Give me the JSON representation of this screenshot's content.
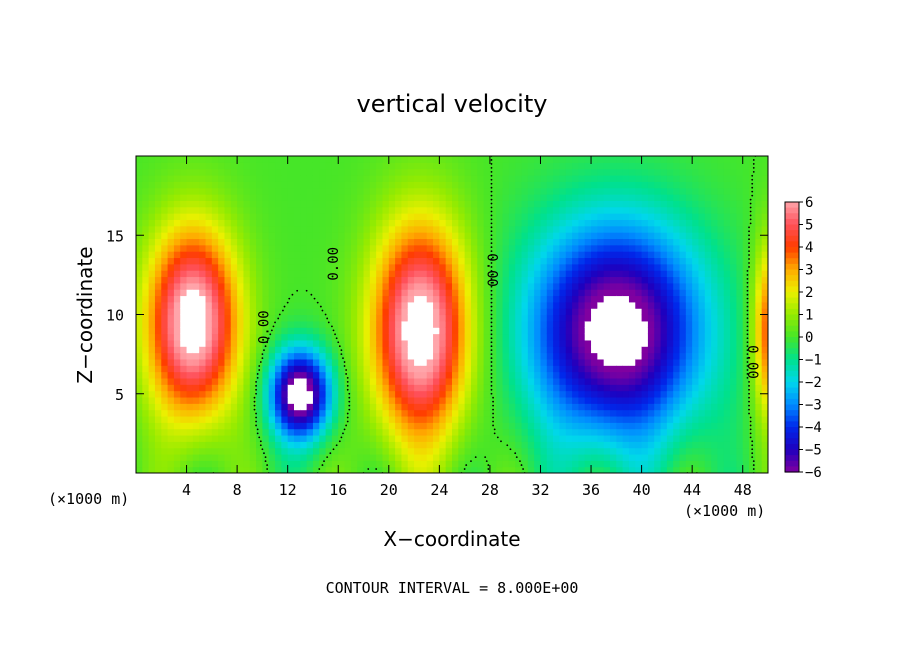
{
  "chart_data": {
    "type": "heatmap",
    "title": "vertical velocity",
    "xlabel": "X−coordinate",
    "ylabel": "Z−coordinate",
    "x_unit_left": "(×1000 m)",
    "x_unit_right": "(×1000 m)",
    "footer": "CONTOUR INTERVAL = 8.000E+00",
    "xlim": [
      0,
      50
    ],
    "ylim": [
      0,
      20
    ],
    "xticks": [
      4,
      8,
      12,
      16,
      20,
      24,
      28,
      32,
      36,
      40,
      44,
      48
    ],
    "xtick_labels": [
      "4",
      "8",
      "12",
      "16",
      "20",
      "24",
      "28",
      "32",
      "36",
      "40",
      "44",
      "48"
    ],
    "yticks": [
      5,
      10,
      15
    ],
    "ytick_labels": [
      "5",
      "10",
      "15"
    ],
    "colorbar": {
      "ticks": [
        6,
        5,
        4,
        3,
        2,
        1,
        0,
        -1,
        -2,
        -3,
        -4,
        -5,
        -6
      ],
      "labels": [
        "6",
        "5",
        "4",
        "3",
        "2",
        "1",
        "0",
        "−1",
        "−2",
        "−3",
        "−4",
        "−5",
        "−6"
      ],
      "range": [
        -6,
        6
      ]
    },
    "contour_labels": [
      {
        "text": "0.00",
        "x": 10.5,
        "z": 9.2,
        "angle": -90
      },
      {
        "text": "0.00",
        "x": 16.0,
        "z": 13.2,
        "angle": -90
      },
      {
        "text": "0.00",
        "x": 27.8,
        "z": 12.8,
        "angle": 90
      },
      {
        "text": "0.00",
        "x": 48.4,
        "z": 7.0,
        "angle": 90
      }
    ],
    "features": [
      {
        "kind": "updraft",
        "x": 4.5,
        "z": 9.5,
        "rx": 4.5,
        "rz": 7.5,
        "peak": 7
      },
      {
        "kind": "updraft",
        "x": 22.5,
        "z": 9.0,
        "rx": 4.8,
        "rz": 8.5,
        "peak": 7
      },
      {
        "kind": "downdraft",
        "x": 13.0,
        "z": 5.0,
        "rx": 3.0,
        "rz": 3.5,
        "peak": -7
      },
      {
        "kind": "downdraft",
        "x": 38.0,
        "z": 9.0,
        "rx": 8.5,
        "rz": 8.5,
        "peak": -7
      },
      {
        "kind": "updraft",
        "x": 50.0,
        "z": 9.0,
        "rx": 1.6,
        "rz": 7.0,
        "peak": 4
      }
    ],
    "grid": false,
    "legend": "right"
  }
}
